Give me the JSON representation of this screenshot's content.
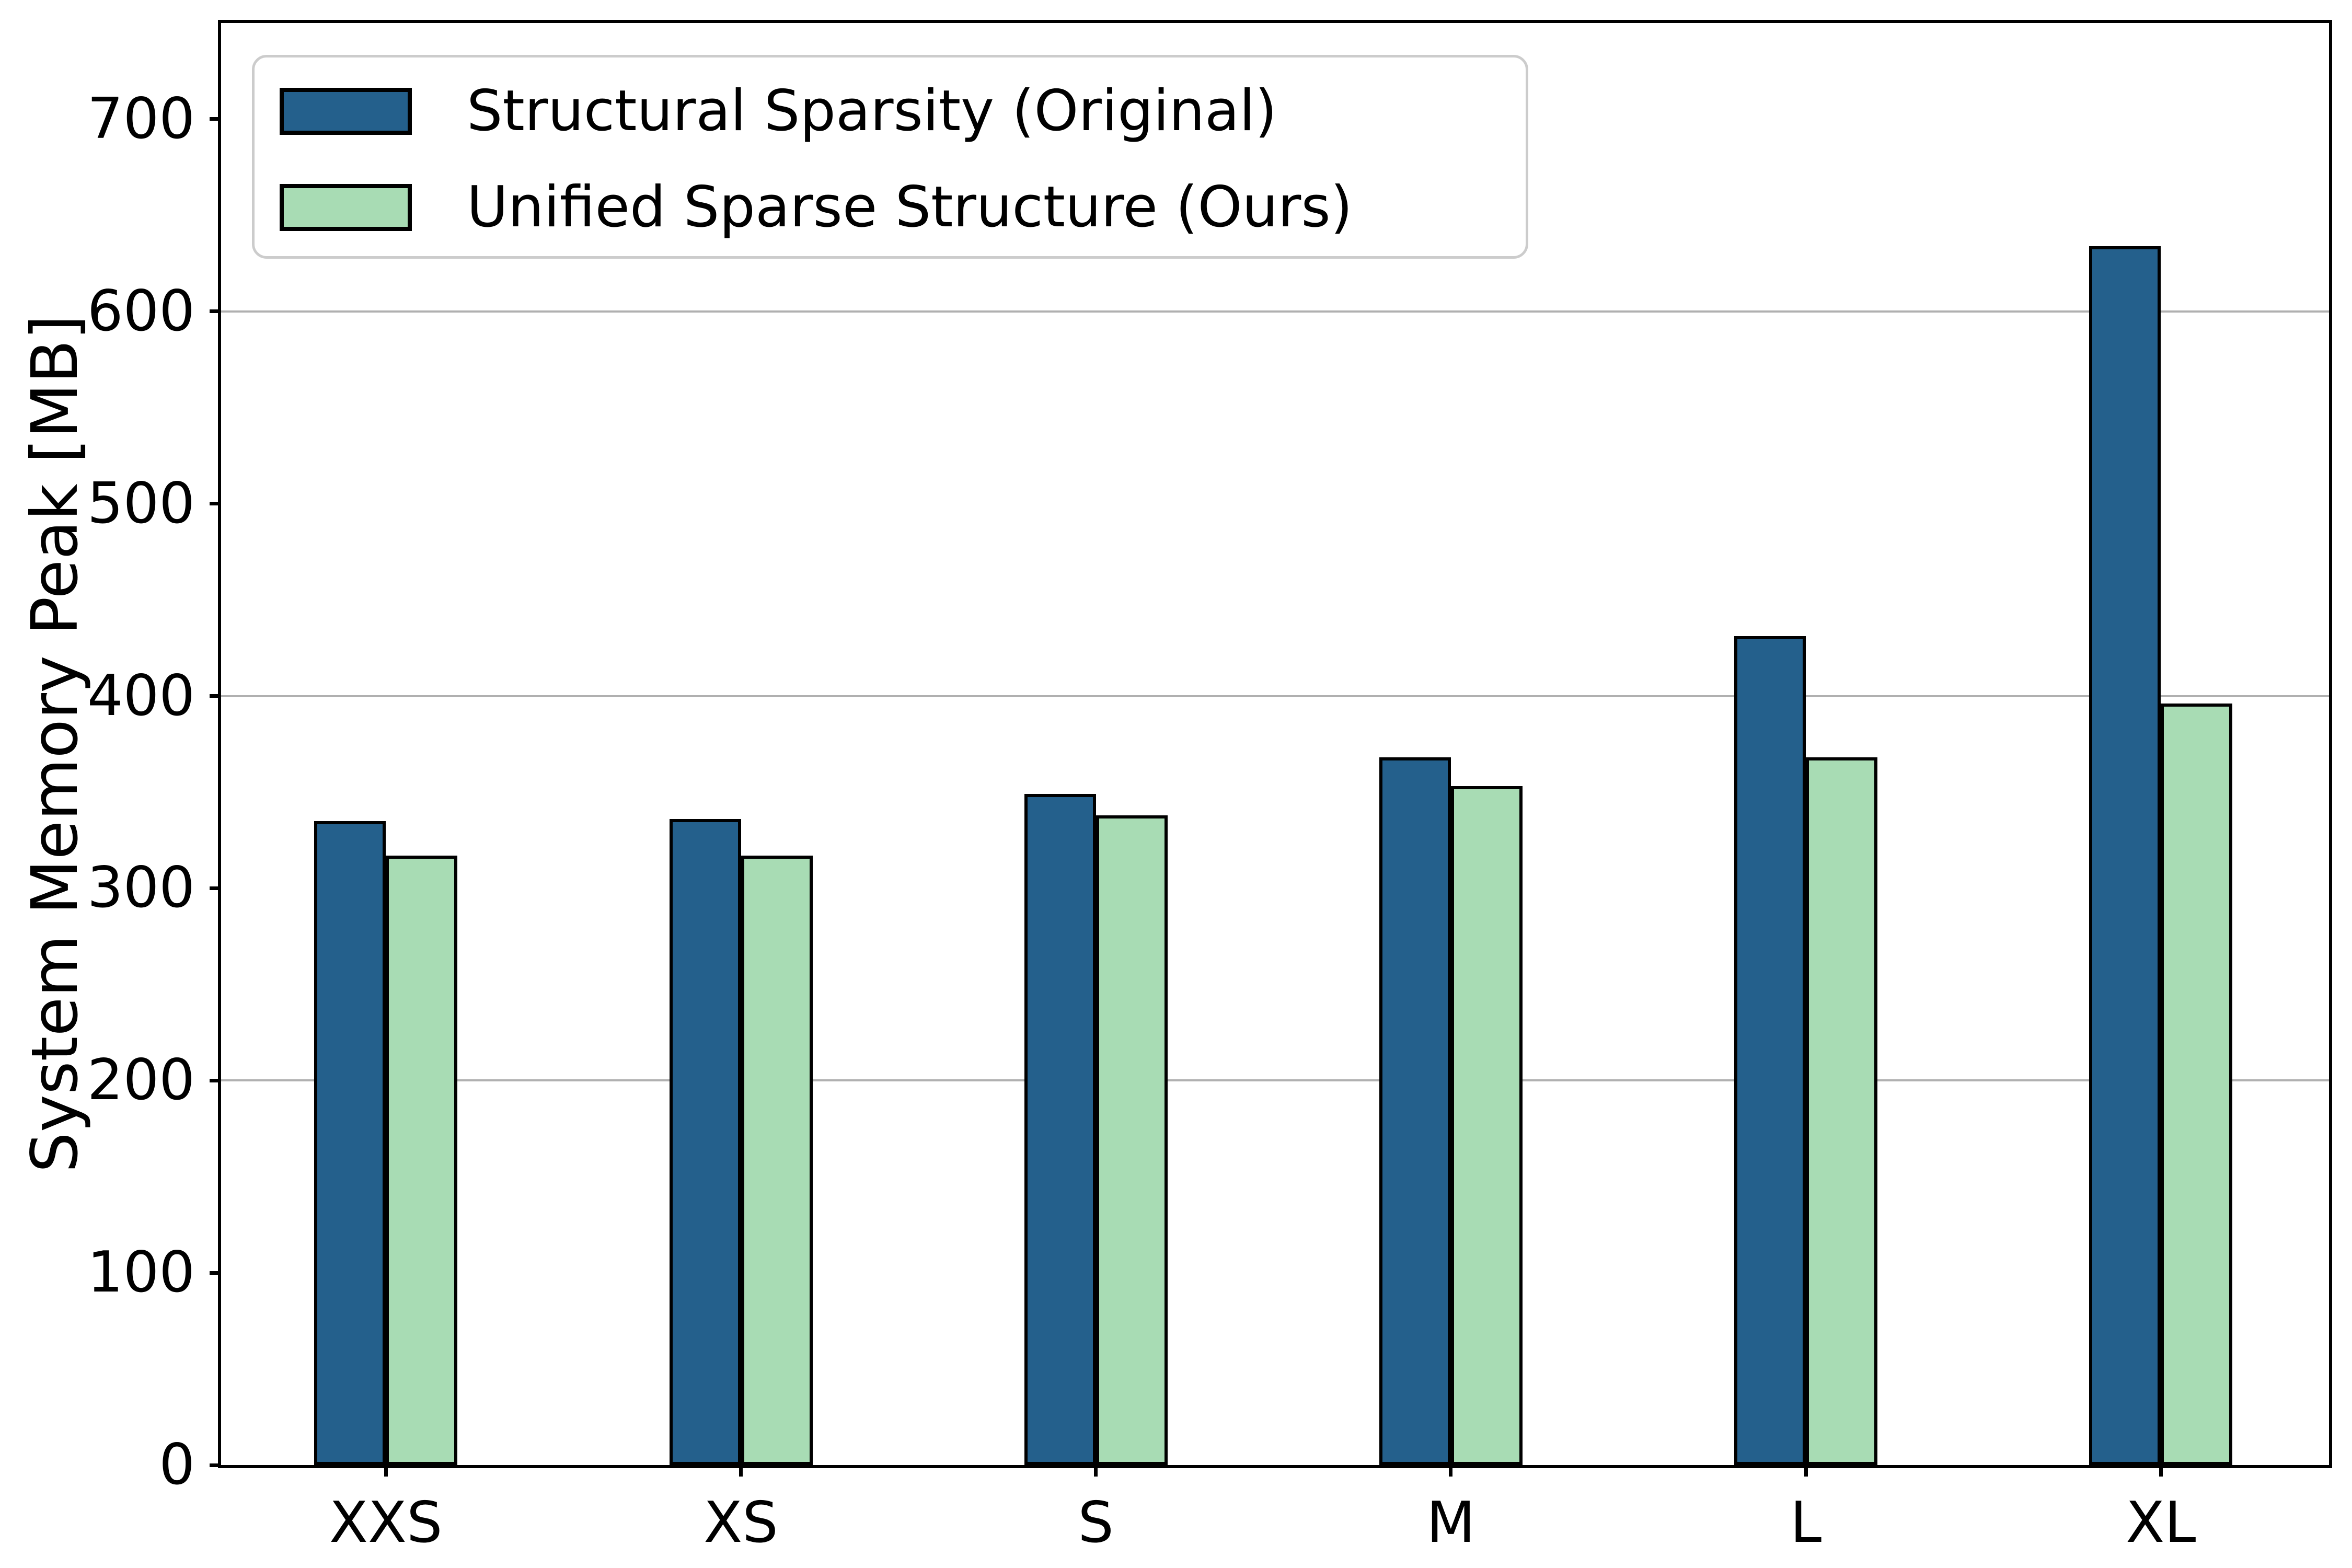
{
  "figure": {
    "background": "#ffffff"
  },
  "chart_data": {
    "type": "bar",
    "title": "",
    "categories": [
      "XXS",
      "XS",
      "S",
      "M",
      "L",
      "XL"
    ],
    "series": [
      {
        "name": "Structural Sparsity (Original)",
        "color": "#24608C",
        "values": [
          335,
          336,
          349,
          368,
          431,
          634
        ]
      },
      {
        "name": "Unified Sparse Structure (Ours)",
        "color": "#A8DCB4",
        "values": [
          317,
          317,
          338,
          353,
          368,
          396
        ]
      }
    ],
    "xlabel": "",
    "ylabel": "System Memory Peak [MB]",
    "ylim": [
      0,
      750
    ],
    "yticks": [
      0,
      100,
      200,
      300,
      400,
      500,
      600,
      700
    ],
    "grid_values": [
      200,
      400,
      600
    ],
    "grid_on": true,
    "legend_position": "upper left",
    "bar_edge_color": "#000000",
    "grid_color": "#b0b0b0",
    "axis_color": "#000000",
    "legend_border_color": "#cccccc",
    "text_color": "#000000"
  }
}
